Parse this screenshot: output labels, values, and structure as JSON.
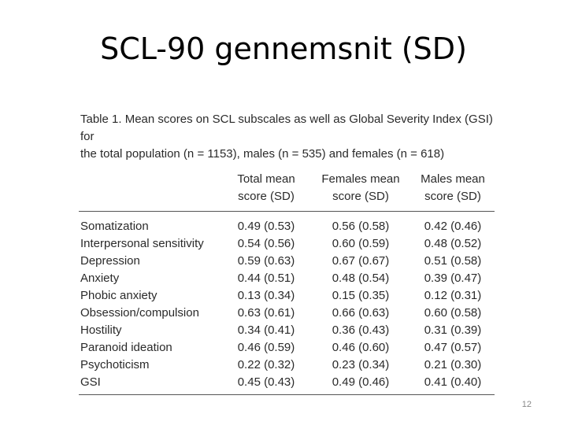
{
  "slide": {
    "title": "SCL-90 gennemsnit (SD)",
    "page_number": "12"
  },
  "table": {
    "caption_label": "Table 1.",
    "caption_text_line1": "Mean scores on SCL subscales as well as Global Severity Index (GSI) for",
    "caption_text_line2": "the total population (n = 1153), males (n = 535) and females (n = 618)",
    "columns": [
      "",
      "Total mean score (SD)",
      "Females mean score (SD)",
      "Males mean score (SD)"
    ],
    "column_lines": [
      [
        "",
        ""
      ],
      [
        "Total mean",
        "score (SD)"
      ],
      [
        "Females mean",
        "score (SD)"
      ],
      [
        "Males mean",
        "score (SD)"
      ]
    ],
    "rows": [
      [
        "Somatization",
        "0.49 (0.53)",
        "0.56 (0.58)",
        "0.42 (0.46)"
      ],
      [
        "Interpersonal sensitivity",
        "0.54 (0.56)",
        "0.60 (0.59)",
        "0.48 (0.52)"
      ],
      [
        "Depression",
        "0.59 (0.63)",
        "0.67 (0.67)",
        "0.51 (0.58)"
      ],
      [
        "Anxiety",
        "0.44 (0.51)",
        "0.48 (0.54)",
        "0.39 (0.47)"
      ],
      [
        "Phobic anxiety",
        "0.13 (0.34)",
        "0.15 (0.35)",
        "0.12 (0.31)"
      ],
      [
        "Obsession/compulsion",
        "0.63 (0.61)",
        "0.66 (0.63)",
        "0.60 (0.58)"
      ],
      [
        "Hostility",
        "0.34 (0.41)",
        "0.36 (0.43)",
        "0.31 (0.39)"
      ],
      [
        "Paranoid ideation",
        "0.46 (0.59)",
        "0.46 (0.60)",
        "0.47 (0.57)"
      ],
      [
        "Psychoticism",
        "0.22 (0.32)",
        "0.23 (0.34)",
        "0.21 (0.30)"
      ],
      [
        "GSI",
        "0.45 (0.43)",
        "0.49 (0.46)",
        "0.41 (0.40)"
      ]
    ]
  }
}
